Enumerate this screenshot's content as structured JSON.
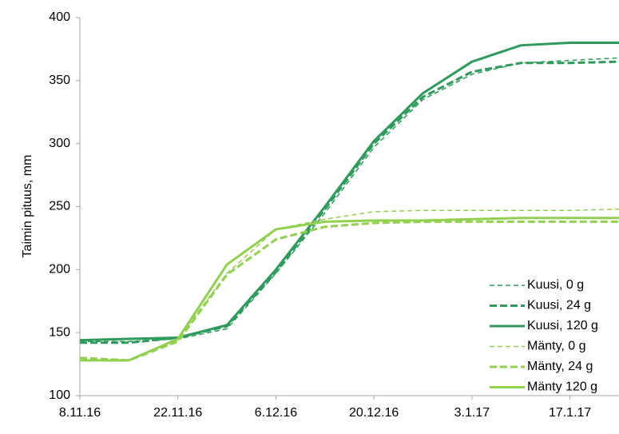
{
  "chart_data": {
    "type": "line",
    "y_label": "Taimin pituus, mm",
    "categories": [
      "8.11.16",
      null,
      "22.11.16",
      null,
      "6.12.16",
      null,
      "20.12.16",
      null,
      "3.1.17",
      null,
      "17.1.17",
      null
    ],
    "ylim": [
      100,
      400
    ],
    "yticks": [
      100,
      150,
      200,
      250,
      300,
      350,
      400
    ],
    "grid": false,
    "legend": "right",
    "series": [
      {
        "name": "Kuusi, 0 g",
        "color": "#2e9b5c",
        "style": "dashed",
        "width": 1.5,
        "values": [
          143,
          143,
          145,
          153,
          197,
          245,
          297,
          335,
          355,
          364,
          366,
          368
        ]
      },
      {
        "name": "Kuusi, 24 g",
        "color": "#2e9b5c",
        "style": "dashed",
        "width": 3,
        "values": [
          142,
          142,
          146,
          155,
          198,
          248,
          300,
          337,
          357,
          364,
          364,
          365
        ]
      },
      {
        "name": "Kuusi, 120 g",
        "color": "#2e9b5c",
        "style": "solid",
        "width": 3,
        "values": [
          144,
          145,
          146,
          156,
          200,
          250,
          302,
          340,
          365,
          378,
          380,
          380
        ]
      },
      {
        "name": "Mänty, 0 g",
        "color": "#92d050",
        "style": "dashed",
        "width": 1.5,
        "values": [
          128,
          128,
          145,
          197,
          232,
          240,
          246,
          247,
          247,
          247,
          247,
          248
        ]
      },
      {
        "name": "Mänty, 24 g",
        "color": "#92d050",
        "style": "dashed",
        "width": 3,
        "values": [
          130,
          128,
          143,
          196,
          224,
          234,
          237,
          238,
          238,
          238,
          238,
          238
        ]
      },
      {
        "name": "Mänty 120 g",
        "color": "#92d050",
        "style": "solid",
        "width": 3,
        "values": [
          128,
          128,
          145,
          204,
          232,
          238,
          239,
          239,
          240,
          241,
          241,
          241
        ]
      }
    ]
  }
}
